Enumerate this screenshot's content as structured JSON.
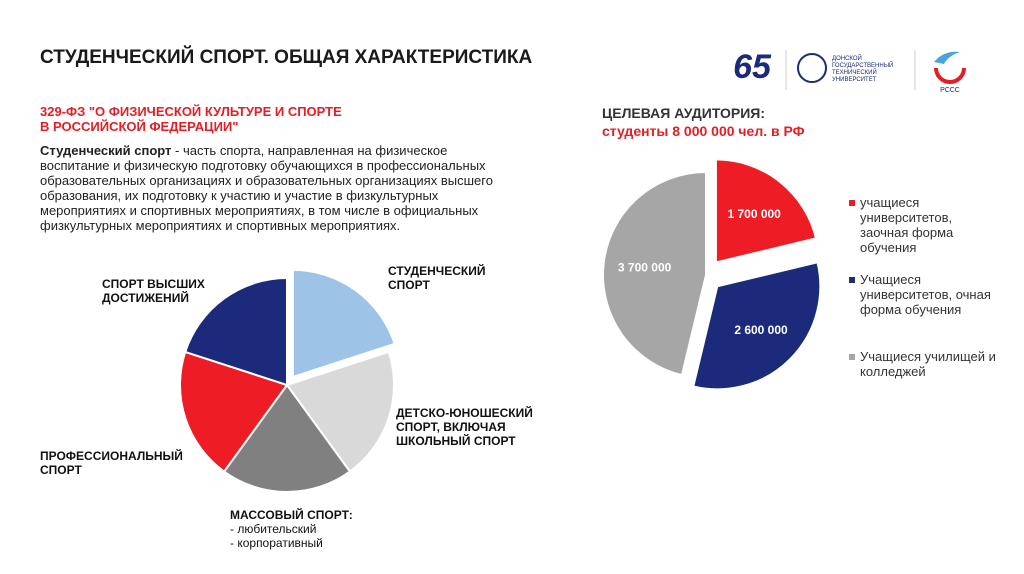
{
  "header": {
    "title": "СТУДЕНЧЕСКИЙ СПОРТ. ОБЩАЯ ХАРАКТЕРИСТИКА",
    "logos": {
      "anniversary": "65",
      "university": [
        "ДОНСКОЙ",
        "ГОСУДАРСТВЕННЫЙ",
        "ТЕХНИЧЕСКИЙ",
        "УНИВЕРСИТЕТ"
      ],
      "association": "РССС"
    }
  },
  "law": {
    "lines": [
      "329-ФЗ \"О ФИЗИЧЕСКОЙ КУЛЬТУРЕ И СПОРТЕ",
      "В РОССИЙСКОЙ ФЕДЕРАЦИИ\""
    ]
  },
  "definition": {
    "term": "Студенческий спорт",
    "text": " - часть спорта, направленная на физическое воспитание и физическую подготовку обучающихся в профессиональных образовательных организациях и образовательных организациях высшего образования, их подготовку к участию и участие в физкультурных мероприятиях и спортивных мероприятиях, в том числе в официальных физкультурных мероприятиях и спортивных мероприятиях."
  },
  "chart_data": [
    {
      "type": "pie",
      "categories": [
        "СТУДЕНЧЕСКИЙ СПОРТ",
        "ДЕТСКО-ЮНОШЕСКИЙ СПОРТ, ВКЛЮЧАЯ ШКОЛЬНЫЙ СПОРТ",
        "МАССОВЫЙ СПОРТ:",
        "ПРОФЕССИОНАЛЬНЫЙ СПОРТ",
        "СПОРТ ВЫСШИХ ДОСТИЖЕНИЙ"
      ],
      "annotations": [
        "- любительский",
        "- корпоративный"
      ],
      "values": [
        20,
        20,
        20,
        20,
        20
      ],
      "colors": [
        "#9dc3e6",
        "#d9d9d9",
        "#808080",
        "#ee1c25",
        "#1b2a7a"
      ]
    },
    {
      "type": "pie",
      "title": "ЦЕЛЕВАЯ АУДИТОРИЯ:",
      "subtitle": "студенты 8 000 000 чел. в РФ",
      "series": [
        {
          "name": "учащиеся университетов, заочная форма обучения",
          "color": "#ee1c25"
        },
        {
          "name": "Учащиеся университетов, очная форма обучения",
          "color": "#1b2a7a"
        },
        {
          "name": "Учащиеся училищей и колледжей",
          "color": "#a6a6a6"
        }
      ],
      "values": [
        1700000,
        2600000,
        3700000
      ],
      "value_labels": [
        "1 700 000",
        "2 600 000",
        "3 700 000"
      ]
    }
  ]
}
